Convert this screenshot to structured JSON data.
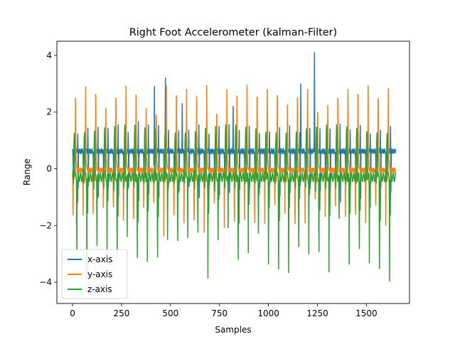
{
  "chart_data": {
    "type": "line",
    "title": "Right Foot Accelerometer (kalman-Filter)",
    "xlabel": "Samples",
    "ylabel": "Range",
    "xlim": [
      -80,
      1720
    ],
    "ylim": [
      -4.75,
      4.5
    ],
    "xticks": [
      0,
      250,
      500,
      750,
      1000,
      1250,
      1500
    ],
    "xtick_labels": [
      "0",
      "250",
      "500",
      "750",
      "1000",
      "1250",
      "1500"
    ],
    "yticks": [
      -4,
      -2,
      0,
      2,
      4
    ],
    "ytick_labels": [
      "−4",
      "−2",
      "0",
      "2",
      "4"
    ],
    "grid": false,
    "legend_position": "lower-left",
    "n_samples": 1650,
    "step_period": 51.5,
    "series": [
      {
        "name": "x-axis",
        "color": "#1f77b4",
        "baseline": 0.62,
        "typical_max": 1.7,
        "typical_min": -1.2,
        "peaks": [
          [
            474,
            3.2
          ],
          [
            1165,
            3.0
          ],
          [
            1235,
            4.1
          ],
          [
            418,
            2.9
          ],
          [
            560,
            2.3
          ],
          [
            820,
            2.2
          ]
        ]
      },
      {
        "name": "y-axis",
        "color": "#ff7f0e",
        "baseline": -0.05,
        "typical_max": 2.75,
        "typical_min": -2.45
      },
      {
        "name": "z-axis",
        "color": "#2ca02c",
        "baseline": -0.35,
        "typical_max": 1.45,
        "typical_min": -4.25
      }
    ]
  }
}
